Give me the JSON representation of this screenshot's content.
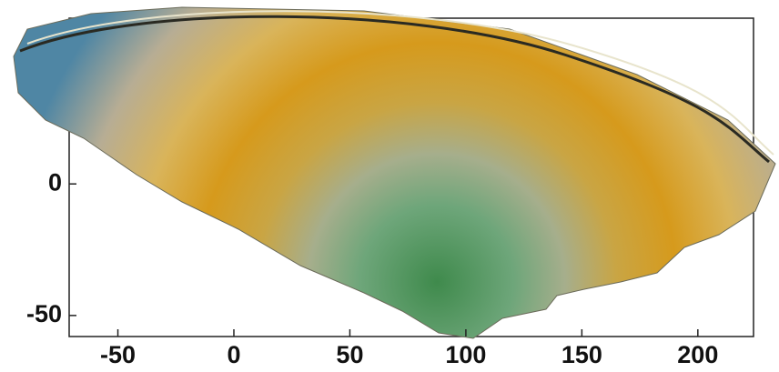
{
  "chart_data": {
    "type": "surface",
    "xlim": [
      -71,
      224
    ],
    "xticks": [
      -50,
      0,
      50,
      100,
      150,
      200
    ],
    "ylim": [
      -58,
      63
    ],
    "yticks": [
      0,
      -50
    ]
  }
}
